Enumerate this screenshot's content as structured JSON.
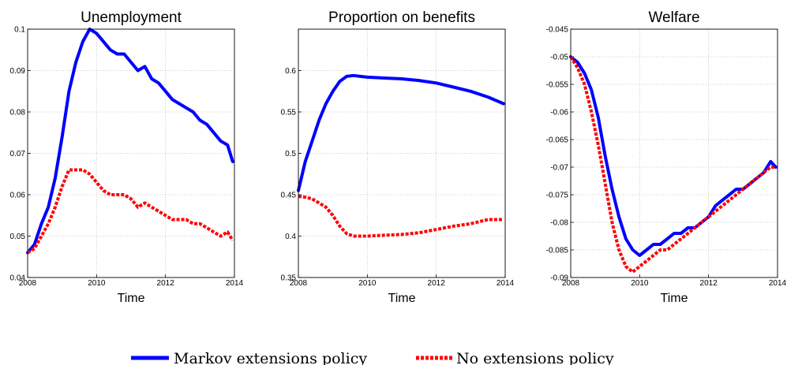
{
  "chart_data": [
    {
      "type": "line",
      "title": "Unemployment",
      "xlabel": "Time",
      "ylabel": "",
      "xlim": [
        2008,
        2014
      ],
      "ylim": [
        0.04,
        0.1
      ],
      "xticks": [
        "2008",
        "2010",
        "2012",
        "2014"
      ],
      "yticks": [
        "0.04",
        "0.05",
        "0.06",
        "0.07",
        "0.08",
        "0.09",
        "0.1"
      ],
      "grid": true,
      "series": [
        {
          "name": "Markov extensions policy",
          "color": "#0000ff",
          "style": "solid",
          "x": [
            2008.0,
            2008.2,
            2008.4,
            2008.6,
            2008.8,
            2009.0,
            2009.2,
            2009.4,
            2009.6,
            2009.8,
            2010.0,
            2010.2,
            2010.4,
            2010.6,
            2010.8,
            2011.0,
            2011.2,
            2011.4,
            2011.6,
            2011.8,
            2012.0,
            2012.2,
            2012.4,
            2012.6,
            2012.8,
            2013.0,
            2013.2,
            2013.4,
            2013.6,
            2013.8,
            2013.95
          ],
          "y": [
            0.046,
            0.048,
            0.053,
            0.057,
            0.064,
            0.074,
            0.085,
            0.092,
            0.097,
            0.1,
            0.099,
            0.097,
            0.095,
            0.094,
            0.094,
            0.092,
            0.09,
            0.091,
            0.088,
            0.087,
            0.085,
            0.083,
            0.082,
            0.081,
            0.08,
            0.078,
            0.077,
            0.075,
            0.073,
            0.072,
            0.068
          ]
        },
        {
          "name": "No extensions policy",
          "color": "#ff0000",
          "style": "dashed",
          "x": [
            2008.0,
            2008.2,
            2008.4,
            2008.6,
            2008.8,
            2009.0,
            2009.2,
            2009.4,
            2009.6,
            2009.8,
            2010.0,
            2010.2,
            2010.4,
            2010.6,
            2010.8,
            2011.0,
            2011.2,
            2011.4,
            2011.6,
            2011.8,
            2012.0,
            2012.2,
            2012.4,
            2012.6,
            2012.8,
            2013.0,
            2013.2,
            2013.4,
            2013.6,
            2013.8,
            2013.95
          ],
          "y": [
            0.046,
            0.047,
            0.05,
            0.053,
            0.057,
            0.062,
            0.066,
            0.066,
            0.066,
            0.065,
            0.063,
            0.061,
            0.06,
            0.06,
            0.06,
            0.059,
            0.057,
            0.058,
            0.057,
            0.056,
            0.055,
            0.054,
            0.054,
            0.054,
            0.053,
            0.053,
            0.052,
            0.051,
            0.05,
            0.051,
            0.049
          ]
        }
      ]
    },
    {
      "type": "line",
      "title": "Proportion on benefits",
      "xlabel": "Time",
      "ylabel": "",
      "xlim": [
        2008,
        2014
      ],
      "ylim": [
        0.35,
        0.65
      ],
      "xticks": [
        "2008",
        "2010",
        "2012",
        "2014"
      ],
      "yticks": [
        "0.35",
        "0.4",
        "0.45",
        "0.5",
        "0.55",
        "0.6"
      ],
      "grid": true,
      "series": [
        {
          "name": "Markov extensions policy",
          "color": "#0000ff",
          "style": "solid",
          "x": [
            2008.0,
            2008.2,
            2008.4,
            2008.6,
            2008.8,
            2009.0,
            2009.2,
            2009.4,
            2009.6,
            2009.8,
            2010.0,
            2010.5,
            2011.0,
            2011.5,
            2012.0,
            2012.5,
            2013.0,
            2013.5,
            2013.95
          ],
          "y": [
            0.455,
            0.49,
            0.515,
            0.54,
            0.56,
            0.575,
            0.587,
            0.593,
            0.594,
            0.593,
            0.592,
            0.591,
            0.59,
            0.588,
            0.585,
            0.58,
            0.575,
            0.568,
            0.56
          ]
        },
        {
          "name": "No extensions policy",
          "color": "#ff0000",
          "style": "dashed",
          "x": [
            2008.0,
            2008.2,
            2008.4,
            2008.6,
            2008.8,
            2009.0,
            2009.2,
            2009.4,
            2009.6,
            2009.8,
            2010.0,
            2010.5,
            2011.0,
            2011.5,
            2012.0,
            2012.5,
            2013.0,
            2013.5,
            2013.95
          ],
          "y": [
            0.448,
            0.447,
            0.445,
            0.44,
            0.435,
            0.425,
            0.412,
            0.403,
            0.4,
            0.4,
            0.4,
            0.401,
            0.402,
            0.404,
            0.408,
            0.412,
            0.415,
            0.42,
            0.42
          ]
        }
      ]
    },
    {
      "type": "line",
      "title": "Welfare",
      "xlabel": "Time",
      "ylabel": "",
      "xlim": [
        2008,
        2014
      ],
      "ylim": [
        -0.09,
        -0.045
      ],
      "xticks": [
        "2008",
        "2010",
        "2012",
        "2014"
      ],
      "yticks": [
        "-0.09",
        "-0.085",
        "-0.08",
        "-0.075",
        "-0.07",
        "-0.065",
        "-0.06",
        "-0.055",
        "-0.05",
        "-0.045"
      ],
      "grid": true,
      "series": [
        {
          "name": "Markov extensions policy",
          "color": "#0000ff",
          "style": "solid",
          "x": [
            2008.0,
            2008.2,
            2008.4,
            2008.6,
            2008.8,
            2009.0,
            2009.2,
            2009.4,
            2009.6,
            2009.8,
            2010.0,
            2010.2,
            2010.4,
            2010.6,
            2010.8,
            2011.0,
            2011.2,
            2011.4,
            2011.6,
            2011.8,
            2012.0,
            2012.2,
            2012.4,
            2012.6,
            2012.8,
            2013.0,
            2013.2,
            2013.4,
            2013.6,
            2013.8,
            2013.95
          ],
          "y": [
            -0.05,
            -0.051,
            -0.053,
            -0.056,
            -0.061,
            -0.068,
            -0.074,
            -0.079,
            -0.083,
            -0.085,
            -0.086,
            -0.085,
            -0.084,
            -0.084,
            -0.083,
            -0.082,
            -0.082,
            -0.081,
            -0.081,
            -0.08,
            -0.079,
            -0.077,
            -0.076,
            -0.075,
            -0.074,
            -0.074,
            -0.073,
            -0.072,
            -0.071,
            -0.069,
            -0.07
          ]
        },
        {
          "name": "No extensions policy",
          "color": "#ff0000",
          "style": "dashed",
          "x": [
            2008.0,
            2008.2,
            2008.4,
            2008.6,
            2008.8,
            2009.0,
            2009.2,
            2009.4,
            2009.6,
            2009.8,
            2010.0,
            2010.2,
            2010.4,
            2010.6,
            2010.8,
            2011.0,
            2011.2,
            2011.4,
            2011.6,
            2011.8,
            2012.0,
            2012.2,
            2012.4,
            2012.6,
            2012.8,
            2013.0,
            2013.2,
            2013.4,
            2013.6,
            2013.8,
            2013.95
          ],
          "y": [
            -0.05,
            -0.052,
            -0.055,
            -0.06,
            -0.066,
            -0.073,
            -0.08,
            -0.085,
            -0.088,
            -0.089,
            -0.088,
            -0.087,
            -0.086,
            -0.085,
            -0.085,
            -0.084,
            -0.083,
            -0.082,
            -0.081,
            -0.08,
            -0.079,
            -0.078,
            -0.077,
            -0.076,
            -0.075,
            -0.074,
            -0.073,
            -0.072,
            -0.071,
            -0.07,
            -0.07
          ]
        }
      ]
    }
  ],
  "legend": {
    "placement": "bottom-center",
    "items": [
      {
        "label": "Markov extensions policy",
        "color": "#0000ff",
        "style": "solid"
      },
      {
        "label": "No extensions policy",
        "color": "#ff0000",
        "style": "dashed"
      }
    ]
  }
}
